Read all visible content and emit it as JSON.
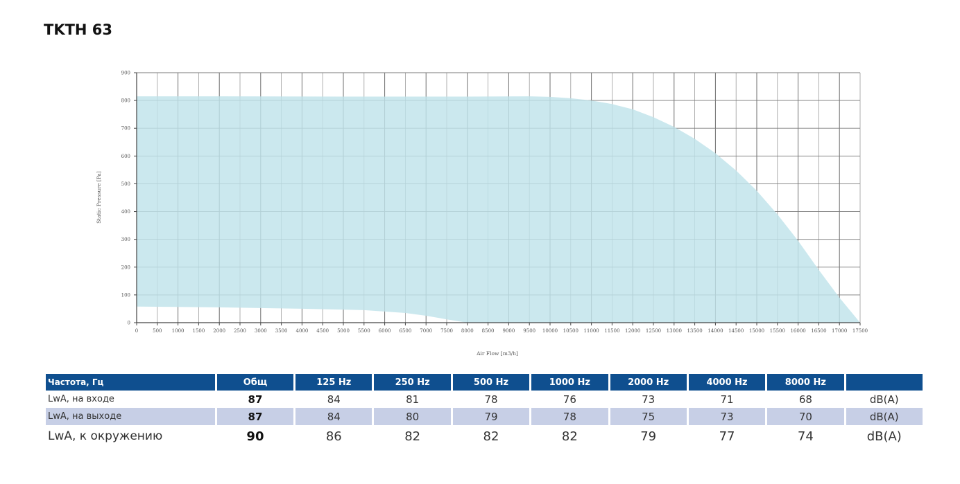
{
  "header": {
    "title": "TKTH 63"
  },
  "chart_data": {
    "type": "area",
    "title": "",
    "xlabel": "Air Flow [m3/h]",
    "ylabel": "Static Pressure [Pa]",
    "xlim": [
      0,
      17500
    ],
    "ylim": [
      0,
      900
    ],
    "x_ticks": [
      0,
      500,
      1000,
      1500,
      2000,
      2500,
      3000,
      3500,
      4000,
      4500,
      5000,
      5500,
      6000,
      6500,
      7000,
      7500,
      8000,
      8500,
      9000,
      9500,
      10000,
      10500,
      11000,
      11500,
      12000,
      12500,
      13000,
      13500,
      14000,
      14500,
      15000,
      15500,
      16000,
      16500,
      17000,
      17500
    ],
    "y_ticks": [
      0,
      100,
      200,
      300,
      400,
      500,
      600,
      700,
      800,
      900
    ],
    "grid": true,
    "fill_color": "#bfe3ea",
    "series": [
      {
        "role": "upper",
        "x": [
          0,
          2000,
          5000,
          8000,
          9500,
          10000,
          10500,
          11000,
          11500,
          12000,
          12500,
          13000,
          13500,
          14000,
          14500,
          15000,
          15500,
          16000,
          16500,
          17000,
          17500
        ],
        "y": [
          815,
          815,
          814,
          814,
          815,
          813,
          808,
          800,
          787,
          768,
          740,
          705,
          662,
          610,
          548,
          475,
          390,
          295,
          190,
          90,
          0
        ]
      },
      {
        "role": "lower",
        "x": [
          0,
          2000,
          4000,
          5500,
          6500,
          7000,
          7500,
          8000,
          17500
        ],
        "y": [
          58,
          55,
          50,
          45,
          35,
          25,
          12,
          0,
          0
        ]
      }
    ]
  },
  "noise_table": {
    "header_label": "Частота, Гц",
    "columns": [
      "Общ",
      "125 Hz",
      "250 Hz",
      "500 Hz",
      "1000 Hz",
      "2000 Hz",
      "4000 Hz",
      "8000 Hz",
      ""
    ],
    "rows": [
      {
        "label": "LwA, на входе",
        "total": "87",
        "values": [
          "84",
          "81",
          "78",
          "76",
          "73",
          "71",
          "68"
        ],
        "unit": "dB(A)"
      },
      {
        "label": "LwA, на выходе",
        "total": "87",
        "values": [
          "84",
          "80",
          "79",
          "78",
          "75",
          "73",
          "70"
        ],
        "unit": "dB(A)"
      },
      {
        "label": "LwA, к окружению",
        "total": "90",
        "values": [
          "86",
          "82",
          "82",
          "82",
          "79",
          "77",
          "74"
        ],
        "unit": "dB(A)"
      }
    ]
  }
}
